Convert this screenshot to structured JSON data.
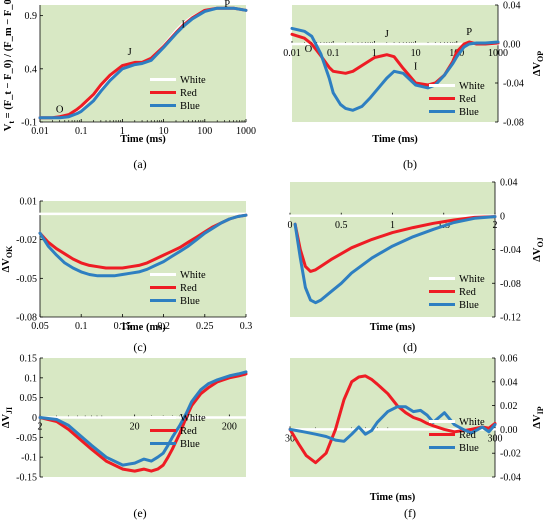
{
  "colors": {
    "plot_bg": "#d8e8c4",
    "white": "#ffffff",
    "red": "#ee1c24",
    "blue": "#2e7fc1"
  },
  "legend": [
    "White",
    "Red",
    "Blue"
  ],
  "chart_data": [
    {
      "id": "a",
      "type": "line",
      "caption": "(a)",
      "xlabel": "Time (ms)",
      "ylabel": "V_t = (F_t − F_0) / (F_m − F_0)",
      "xscale": "log",
      "xlim": [
        0.01,
        1000
      ],
      "ylim": [
        -0.1,
        1.0
      ],
      "xticks": [
        0.01,
        0.1,
        1,
        10,
        100,
        1000
      ],
      "xtick_labels": [
        "0.01",
        "0.1",
        "1",
        "10",
        "100",
        "1000"
      ],
      "yticks": [
        -0.1,
        0.4,
        0.9
      ],
      "ytick_labels": [
        "-0.1",
        "0.4",
        "0.9"
      ],
      "annotations": [
        {
          "text": "O",
          "x": 0.03,
          "y": -0.01
        },
        {
          "text": "J",
          "x": 1.5,
          "y": 0.53
        },
        {
          "text": "I",
          "x": 30,
          "y": 0.79
        },
        {
          "text": "P",
          "x": 350,
          "y": 0.98
        }
      ],
      "series": [
        {
          "name": "White",
          "x": [
            0.01,
            0.02,
            0.03,
            0.05,
            0.08,
            0.1,
            0.2,
            0.3,
            0.5,
            1,
            2,
            3,
            5,
            10,
            20,
            30,
            50,
            100,
            200,
            300,
            500,
            1000
          ],
          "y": [
            -0.06,
            -0.06,
            -0.05,
            -0.03,
            0.01,
            0.04,
            0.15,
            0.23,
            0.32,
            0.42,
            0.46,
            0.46,
            0.5,
            0.62,
            0.76,
            0.83,
            0.89,
            0.95,
            0.97,
            0.97,
            0.97,
            0.95
          ]
        },
        {
          "name": "Red",
          "x": [
            0.01,
            0.02,
            0.03,
            0.05,
            0.08,
            0.1,
            0.2,
            0.3,
            0.5,
            1,
            2,
            3,
            5,
            10,
            20,
            30,
            50,
            100,
            200,
            300,
            500,
            1000
          ],
          "y": [
            -0.06,
            -0.06,
            -0.05,
            -0.03,
            0.02,
            0.05,
            0.16,
            0.25,
            0.34,
            0.43,
            0.46,
            0.46,
            0.5,
            0.61,
            0.74,
            0.81,
            0.88,
            0.95,
            0.97,
            0.97,
            0.97,
            0.95
          ]
        },
        {
          "name": "Blue",
          "x": [
            0.01,
            0.02,
            0.03,
            0.05,
            0.08,
            0.1,
            0.2,
            0.3,
            0.5,
            1,
            2,
            3,
            5,
            10,
            20,
            30,
            50,
            100,
            200,
            300,
            500,
            1000
          ],
          "y": [
            -0.06,
            -0.06,
            -0.06,
            -0.05,
            -0.02,
            0.0,
            0.1,
            0.19,
            0.29,
            0.4,
            0.44,
            0.45,
            0.48,
            0.6,
            0.73,
            0.8,
            0.87,
            0.94,
            0.97,
            0.97,
            0.97,
            0.95
          ]
        }
      ]
    },
    {
      "id": "b",
      "type": "line",
      "caption": "(b)",
      "xlabel": "Time (ms)",
      "ylabel": "ΔV_OP",
      "xscale": "log",
      "xlim": [
        0.01,
        1000
      ],
      "ylim": [
        -0.08,
        0.04
      ],
      "xticks": [
        0.01,
        0.1,
        1,
        10,
        100,
        1000
      ],
      "xtick_labels": [
        "0.01",
        "0.1",
        "1",
        "10",
        "100",
        "1000"
      ],
      "yticks": [
        -0.08,
        -0.04,
        0.0,
        0.04
      ],
      "ytick_labels": [
        "-0.08",
        "-0.04",
        "0.00",
        "0.04"
      ],
      "annotations": [
        {
          "text": "O",
          "x": 0.025,
          "y": -0.008
        },
        {
          "text": "J",
          "x": 2,
          "y": 0.007
        },
        {
          "text": "I",
          "x": 10,
          "y": -0.026
        },
        {
          "text": "P",
          "x": 200,
          "y": 0.009
        }
      ],
      "series": [
        {
          "name": "White",
          "x": [
            0.01,
            1000
          ],
          "y": [
            0,
            0
          ]
        },
        {
          "name": "Red",
          "x": [
            0.01,
            0.02,
            0.03,
            0.05,
            0.08,
            0.1,
            0.2,
            0.3,
            0.5,
            1,
            2,
            3,
            5,
            10,
            20,
            30,
            50,
            80,
            100,
            150,
            200,
            300,
            500,
            1000
          ],
          "y": [
            0.01,
            0.006,
            0.0,
            -0.012,
            -0.024,
            -0.028,
            -0.03,
            -0.028,
            -0.022,
            -0.014,
            -0.011,
            -0.013,
            -0.025,
            -0.04,
            -0.042,
            -0.04,
            -0.032,
            -0.018,
            -0.008,
            0.0,
            0.002,
            0.0,
            0.0,
            0.001
          ]
        },
        {
          "name": "Blue",
          "x": [
            0.01,
            0.02,
            0.03,
            0.05,
            0.08,
            0.1,
            0.15,
            0.2,
            0.3,
            0.5,
            0.8,
            1,
            2,
            3,
            5,
            10,
            20,
            30,
            50,
            80,
            100,
            150,
            200,
            300,
            500,
            1000
          ],
          "y": [
            0.016,
            0.013,
            0.008,
            -0.01,
            -0.035,
            -0.05,
            -0.062,
            -0.066,
            -0.068,
            -0.064,
            -0.055,
            -0.05,
            -0.035,
            -0.028,
            -0.03,
            -0.042,
            -0.045,
            -0.042,
            -0.032,
            -0.02,
            -0.013,
            -0.003,
            0.0,
            0.001,
            0.001,
            0.002
          ]
        }
      ]
    },
    {
      "id": "c",
      "type": "line",
      "caption": "(c)",
      "xlabel": "Time (ms)",
      "ylabel": "ΔV_OK",
      "xscale": "linear",
      "xlim": [
        0.05,
        0.3
      ],
      "ylim": [
        -0.08,
        0.01
      ],
      "xticks": [
        0.05,
        0.1,
        0.15,
        0.2,
        0.25,
        0.3
      ],
      "xtick_labels": [
        "0.05",
        "0.1",
        "0.15",
        "0.2",
        "0.25",
        "0.3"
      ],
      "yticks": [
        -0.08,
        -0.05,
        -0.02,
        0.01
      ],
      "ytick_labels": [
        "-0.08",
        "-0.05",
        "-0.02",
        "0.01"
      ],
      "annotations": [],
      "series": [
        {
          "name": "White",
          "x": [
            0.05,
            0.3
          ],
          "y": [
            0,
            0
          ]
        },
        {
          "name": "Red",
          "x": [
            0.05,
            0.06,
            0.07,
            0.08,
            0.09,
            0.1,
            0.11,
            0.12,
            0.13,
            0.14,
            0.15,
            0.16,
            0.17,
            0.18,
            0.19,
            0.2,
            0.21,
            0.22,
            0.23,
            0.24,
            0.25,
            0.26,
            0.27,
            0.28,
            0.29,
            0.3
          ],
          "y": [
            -0.015,
            -0.022,
            -0.027,
            -0.031,
            -0.035,
            -0.038,
            -0.04,
            -0.041,
            -0.042,
            -0.042,
            -0.042,
            -0.041,
            -0.04,
            -0.038,
            -0.035,
            -0.032,
            -0.029,
            -0.026,
            -0.022,
            -0.018,
            -0.014,
            -0.01,
            -0.007,
            -0.004,
            -0.002,
            -0.001
          ]
        },
        {
          "name": "Blue",
          "x": [
            0.05,
            0.06,
            0.07,
            0.08,
            0.09,
            0.1,
            0.11,
            0.12,
            0.13,
            0.14,
            0.15,
            0.16,
            0.17,
            0.18,
            0.19,
            0.2,
            0.21,
            0.22,
            0.23,
            0.24,
            0.25,
            0.26,
            0.27,
            0.28,
            0.29,
            0.3
          ],
          "y": [
            -0.015,
            -0.025,
            -0.032,
            -0.038,
            -0.042,
            -0.045,
            -0.047,
            -0.048,
            -0.048,
            -0.048,
            -0.047,
            -0.046,
            -0.045,
            -0.043,
            -0.04,
            -0.037,
            -0.033,
            -0.029,
            -0.025,
            -0.02,
            -0.015,
            -0.011,
            -0.007,
            -0.004,
            -0.002,
            -0.001
          ]
        }
      ]
    },
    {
      "id": "d",
      "type": "line",
      "caption": "(d)",
      "xlabel": "Time (ms)",
      "ylabel": "ΔV_OJ",
      "xscale": "linear",
      "xlim": [
        0,
        2
      ],
      "ylim": [
        -0.12,
        0.04
      ],
      "xticks": [
        0,
        0.5,
        1,
        1.5,
        2
      ],
      "xtick_labels": [
        "0",
        "0.5",
        "1",
        "1.5",
        "2"
      ],
      "yticks": [
        -0.12,
        -0.08,
        -0.04,
        0,
        0.04
      ],
      "ytick_labels": [
        "-0.12",
        "-0.08",
        "-0.04",
        "0",
        "0.04"
      ],
      "annotations": [],
      "series": [
        {
          "name": "White",
          "x": [
            0,
            2
          ],
          "y": [
            0,
            0
          ]
        },
        {
          "name": "Red",
          "x": [
            0.05,
            0.1,
            0.15,
            0.2,
            0.25,
            0.3,
            0.4,
            0.5,
            0.6,
            0.8,
            1.0,
            1.2,
            1.4,
            1.6,
            1.8,
            2.0
          ],
          "y": [
            -0.01,
            -0.04,
            -0.06,
            -0.066,
            -0.064,
            -0.06,
            -0.052,
            -0.045,
            -0.038,
            -0.028,
            -0.02,
            -0.014,
            -0.009,
            -0.005,
            -0.002,
            -0.001
          ]
        },
        {
          "name": "Blue",
          "x": [
            0.05,
            0.1,
            0.15,
            0.2,
            0.25,
            0.3,
            0.4,
            0.5,
            0.6,
            0.8,
            1.0,
            1.2,
            1.4,
            1.6,
            1.8,
            2.0
          ],
          "y": [
            -0.01,
            -0.05,
            -0.085,
            -0.1,
            -0.103,
            -0.1,
            -0.09,
            -0.08,
            -0.068,
            -0.05,
            -0.036,
            -0.025,
            -0.016,
            -0.008,
            -0.003,
            -0.001
          ]
        }
      ]
    },
    {
      "id": "e",
      "type": "line",
      "caption": "(e)",
      "xlabel": "",
      "ylabel": "ΔV_JI",
      "xscale": "log",
      "xlim": [
        2,
        300
      ],
      "ylim": [
        -0.15,
        0.15
      ],
      "xticks": [
        2,
        20,
        200
      ],
      "xtick_labels": [
        "2",
        "20",
        "200"
      ],
      "yticks": [
        -0.15,
        -0.1,
        -0.05,
        0,
        0.05,
        0.1,
        0.15
      ],
      "ytick_labels": [
        "-0.15",
        "-0.1",
        "-0.05",
        "0",
        "0.05",
        "0.1",
        "0.15"
      ],
      "annotations": [],
      "series": [
        {
          "name": "White",
          "x": [
            2,
            300
          ],
          "y": [
            0,
            0
          ]
        },
        {
          "name": "Red",
          "x": [
            2,
            3,
            4,
            5,
            7,
            10,
            15,
            20,
            25,
            30,
            35,
            40,
            45,
            50,
            60,
            70,
            80,
            100,
            120,
            150,
            200,
            250,
            300
          ],
          "y": [
            0.0,
            -0.01,
            -0.03,
            -0.05,
            -0.08,
            -0.11,
            -0.13,
            -0.135,
            -0.13,
            -0.135,
            -0.13,
            -0.12,
            -0.1,
            -0.08,
            -0.04,
            0.0,
            0.03,
            0.06,
            0.075,
            0.09,
            0.1,
            0.105,
            0.11
          ]
        },
        {
          "name": "Blue",
          "x": [
            2,
            3,
            4,
            5,
            7,
            10,
            15,
            20,
            25,
            30,
            35,
            40,
            45,
            50,
            60,
            70,
            80,
            100,
            120,
            150,
            200,
            250,
            300
          ],
          "y": [
            0.0,
            -0.005,
            -0.02,
            -0.04,
            -0.07,
            -0.1,
            -0.12,
            -0.115,
            -0.105,
            -0.11,
            -0.1,
            -0.09,
            -0.07,
            -0.05,
            -0.02,
            0.01,
            0.04,
            0.07,
            0.085,
            0.095,
            0.105,
            0.11,
            0.115
          ]
        }
      ]
    },
    {
      "id": "f",
      "type": "line",
      "caption": "(f)",
      "xlabel": "Time (ms)",
      "ylabel": "ΔV_IP",
      "xscale": "log",
      "xlim": [
        30,
        300
      ],
      "ylim": [
        -0.04,
        0.06
      ],
      "xticks": [
        30,
        300
      ],
      "xtick_labels": [
        "30",
        "300"
      ],
      "yticks": [
        -0.04,
        -0.02,
        0.0,
        0.02,
        0.04,
        0.06
      ],
      "ytick_labels": [
        "-0.04",
        "-0.02",
        "0.00",
        "0.02",
        "0.04",
        "0.06"
      ],
      "annotations": [],
      "series": [
        {
          "name": "White",
          "x": [
            30,
            300
          ],
          "y": [
            0,
            0
          ]
        },
        {
          "name": "Red",
          "x": [
            30,
            33,
            36,
            40,
            45,
            50,
            55,
            60,
            65,
            70,
            75,
            80,
            90,
            100,
            110,
            120,
            130,
            140,
            150,
            170,
            190,
            210,
            230,
            260,
            280,
            300
          ],
          "y": [
            0.0,
            -0.012,
            -0.022,
            -0.028,
            -0.02,
            0.0,
            0.025,
            0.04,
            0.044,
            0.045,
            0.042,
            0.038,
            0.03,
            0.02,
            0.014,
            0.01,
            0.008,
            0.005,
            0.003,
            0.0,
            -0.002,
            -0.001,
            0.0,
            0.002,
            0.001,
            0.005
          ]
        },
        {
          "name": "Blue",
          "x": [
            30,
            35,
            40,
            45,
            50,
            55,
            60,
            65,
            70,
            75,
            80,
            90,
            100,
            110,
            120,
            130,
            140,
            150,
            170,
            190,
            210,
            230,
            260,
            280,
            300
          ],
          "y": [
            0.0,
            -0.002,
            -0.004,
            -0.006,
            -0.009,
            -0.01,
            -0.004,
            0.002,
            -0.004,
            -0.001,
            0.006,
            0.015,
            0.019,
            0.019,
            0.015,
            0.016,
            0.012,
            0.006,
            0.014,
            0.004,
            0.0,
            -0.003,
            0.002,
            -0.002,
            0.004
          ]
        }
      ]
    }
  ]
}
